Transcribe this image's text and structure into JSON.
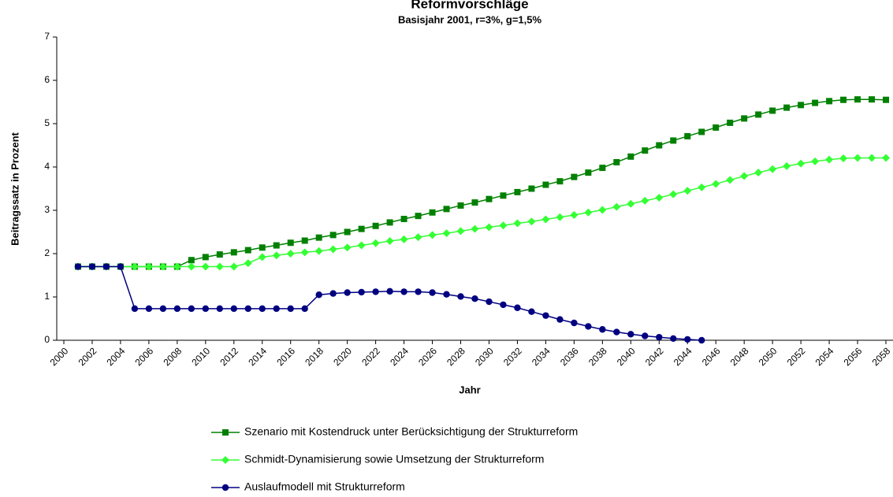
{
  "chart_data": {
    "type": "line",
    "title": "Reformvorschläge",
    "subtitle": "Basisjahr 2001, r=3%, g=1,5%",
    "x_label": "Jahr",
    "y_label": "Beitragssatz in Prozent",
    "x": [
      2001,
      2002,
      2003,
      2004,
      2005,
      2006,
      2007,
      2008,
      2009,
      2010,
      2011,
      2012,
      2013,
      2014,
      2015,
      2016,
      2017,
      2018,
      2019,
      2020,
      2021,
      2022,
      2023,
      2024,
      2025,
      2026,
      2027,
      2028,
      2029,
      2030,
      2031,
      2032,
      2033,
      2034,
      2035,
      2036,
      2037,
      2038,
      2039,
      2040,
      2041,
      2042,
      2043,
      2044,
      2045,
      2046,
      2047,
      2048,
      2049,
      2050,
      2051,
      2052,
      2053,
      2054,
      2055,
      2056,
      2057,
      2058
    ],
    "xlim": [
      1999.5,
      2058.5
    ],
    "xticks": [
      2000,
      2002,
      2004,
      2006,
      2008,
      2010,
      2012,
      2014,
      2016,
      2018,
      2020,
      2022,
      2024,
      2026,
      2028,
      2030,
      2032,
      2034,
      2036,
      2038,
      2040,
      2042,
      2044,
      2046,
      2048,
      2050,
      2052,
      2054,
      2056,
      2058
    ],
    "ylim": [
      0,
      7
    ],
    "yticks": [
      0,
      1,
      2,
      3,
      4,
      5,
      6,
      7
    ],
    "grid": false,
    "legend": "bottom",
    "series": [
      {
        "name": "Szenario mit Kostendruck unter Berücksichtigung der Strukturreform",
        "color": "#008000",
        "marker": "square",
        "values": [
          1.7,
          1.7,
          1.7,
          1.7,
          1.7,
          1.7,
          1.7,
          1.7,
          1.85,
          1.92,
          1.98,
          2.03,
          2.08,
          2.14,
          2.19,
          2.25,
          2.3,
          2.37,
          2.43,
          2.5,
          2.57,
          2.64,
          2.72,
          2.8,
          2.87,
          2.95,
          3.03,
          3.11,
          3.18,
          3.26,
          3.34,
          3.42,
          3.5,
          3.59,
          3.67,
          3.77,
          3.87,
          3.98,
          4.11,
          4.24,
          4.38,
          4.5,
          4.61,
          4.71,
          4.81,
          4.91,
          5.02,
          5.12,
          5.21,
          5.3,
          5.37,
          5.43,
          5.48,
          5.52,
          5.55,
          5.56,
          5.56,
          5.55
        ]
      },
      {
        "name": "Schmidt-Dynamisierung sowie Umsetzung der Strukturreform",
        "color": "#33ff33",
        "marker": "diamond",
        "values": [
          1.7,
          1.7,
          1.7,
          1.7,
          1.7,
          1.7,
          1.7,
          1.7,
          1.7,
          1.7,
          1.7,
          1.7,
          1.78,
          1.92,
          1.96,
          2.0,
          2.03,
          2.06,
          2.1,
          2.14,
          2.19,
          2.24,
          2.29,
          2.33,
          2.38,
          2.43,
          2.47,
          2.52,
          2.57,
          2.61,
          2.65,
          2.7,
          2.74,
          2.79,
          2.84,
          2.89,
          2.95,
          3.01,
          3.08,
          3.15,
          3.22,
          3.29,
          3.37,
          3.45,
          3.53,
          3.61,
          3.7,
          3.79,
          3.87,
          3.95,
          4.02,
          4.08,
          4.13,
          4.17,
          4.2,
          4.21,
          4.21,
          4.21
        ]
      },
      {
        "name": "Auslaufmodell mit Strukturreform",
        "color": "#000080",
        "marker": "circle",
        "values": [
          1.7,
          1.7,
          1.7,
          1.7,
          0.73,
          0.73,
          0.73,
          0.73,
          0.73,
          0.73,
          0.73,
          0.73,
          0.73,
          0.73,
          0.73,
          0.73,
          0.73,
          1.05,
          1.08,
          1.1,
          1.11,
          1.12,
          1.13,
          1.12,
          1.12,
          1.1,
          1.06,
          1.01,
          0.96,
          0.89,
          0.82,
          0.75,
          0.66,
          0.57,
          0.48,
          0.4,
          0.32,
          0.25,
          0.19,
          0.14,
          0.1,
          0.07,
          0.04,
          0.02,
          0,
          null,
          null,
          null,
          null,
          null,
          null,
          null,
          null,
          null,
          null,
          null,
          null,
          null
        ]
      }
    ]
  }
}
